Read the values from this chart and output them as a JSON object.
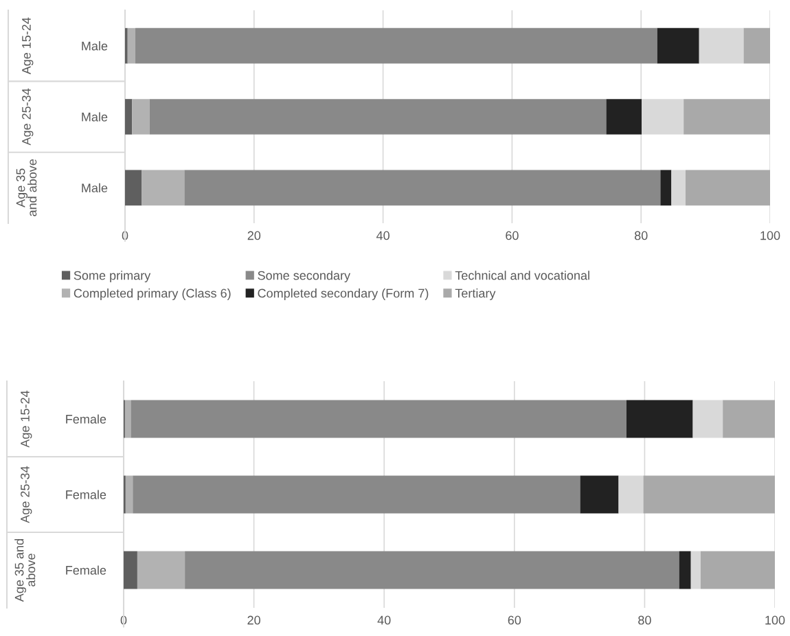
{
  "chart_data": [
    {
      "type": "bar",
      "orientation": "horizontal",
      "stacked": true,
      "categories": [
        "Male",
        "Male",
        "Male"
      ],
      "annotations": [
        "Age 15-24",
        "Age 25-34",
        "Age 35\nand above"
      ],
      "xlim": [
        0,
        100
      ],
      "xticks": [
        0,
        20,
        40,
        60,
        80,
        100
      ],
      "grid": "x",
      "legend": "bottom",
      "series": [
        {
          "name": "Some primary",
          "color": "#5f5f5f",
          "values": [
            0.4,
            1.1,
            2.6
          ]
        },
        {
          "name": "Completed primary (Class 6)",
          "color": "#b2b2b2",
          "values": [
            1.2,
            2.7,
            6.6
          ]
        },
        {
          "name": "Some secondary",
          "color": "#898989",
          "values": [
            80.9,
            70.8,
            73.8
          ]
        },
        {
          "name": "Completed secondary (Form 7)",
          "color": "#222222",
          "values": [
            6.5,
            5.5,
            1.7
          ]
        },
        {
          "name": "Technical and vocational",
          "color": "#d9d9d9",
          "values": [
            6.9,
            6.5,
            2.2
          ]
        },
        {
          "name": "Tertiary",
          "color": "#a9a9a9",
          "values": [
            4.1,
            13.4,
            13.1
          ]
        }
      ]
    },
    {
      "type": "bar",
      "orientation": "horizontal",
      "stacked": true,
      "categories": [
        "Female",
        "Female",
        "Female"
      ],
      "annotations": [
        "Age 15-24",
        "Age 25-34",
        "Age 35 and\nabove"
      ],
      "xlim": [
        0,
        100
      ],
      "xticks": [
        0,
        20,
        40,
        60,
        80,
        100
      ],
      "grid": "x",
      "series": [
        {
          "color": "#5f5f5f",
          "values": [
            0.2,
            0.3,
            2.1
          ]
        },
        {
          "color": "#b2b2b2",
          "values": [
            0.9,
            1.1,
            7.3
          ]
        },
        {
          "color": "#898989",
          "values": [
            76.1,
            68.7,
            75.9
          ]
        },
        {
          "color": "#222222",
          "values": [
            10.2,
            5.9,
            1.8
          ]
        },
        {
          "color": "#d9d9d9",
          "values": [
            4.6,
            3.8,
            1.5
          ]
        },
        {
          "color": "#a9a9a9",
          "values": [
            8.0,
            20.2,
            11.4
          ]
        }
      ]
    }
  ]
}
